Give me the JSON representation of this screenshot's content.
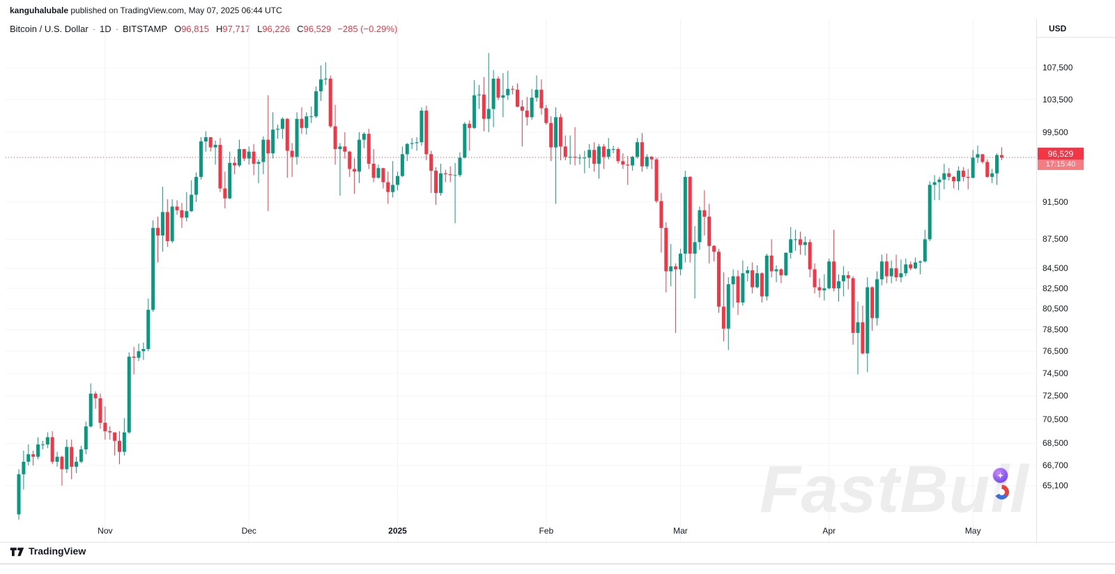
{
  "attribution": {
    "username": "kanguhalubale",
    "rest": " published on TradingView.com, May 07, 2025 06:44 UTC"
  },
  "legend": {
    "symbol": "Bitcoin / U.S. Dollar",
    "separator": "·",
    "interval": "1D",
    "exchange": "BITSTAMP",
    "o_label": "O",
    "o_value": "96,815",
    "h_label": "H",
    "h_value": "97,717",
    "l_label": "L",
    "l_value": "96,226",
    "c_label": "C",
    "c_value": "96,529",
    "change": "−285 (−0.29%)"
  },
  "price_axis": {
    "currency": "USD",
    "last_price": "96,529",
    "countdown": "17:15:40",
    "ticks": [
      "107,500",
      "103,500",
      "99,500",
      "91,500",
      "87,500",
      "84,500",
      "82,500",
      "80,500",
      "78,500",
      "76,500",
      "74,500",
      "72,500",
      "70,500",
      "68,500",
      "66,700",
      "65,100"
    ]
  },
  "watermark": {
    "text": "FastBull"
  },
  "footer": {
    "brand": "TradingView"
  },
  "chart_data": {
    "type": "candlestick",
    "title": "Bitcoin / U.S. Dollar, 1D, BITSTAMP",
    "ylabel": "USD",
    "y_scale": "log",
    "grid": "on",
    "price_top": 113900,
    "price_bottom": 60850,
    "last_price": 96529,
    "up_color": "#089981",
    "down_color": "#f23645",
    "x_ticks": [
      {
        "label": "Nov",
        "candle_index": 18
      },
      {
        "label": "Dec",
        "candle_index": 48
      },
      {
        "label": "2025",
        "candle_index": 79,
        "year": true
      },
      {
        "label": "Feb",
        "candle_index": 110
      },
      {
        "label": "Mar",
        "candle_index": 138
      },
      {
        "label": "Apr",
        "candle_index": 169
      },
      {
        "label": "May",
        "candle_index": 199
      }
    ],
    "y_tick_values": [
      107500,
      103500,
      99500,
      91500,
      87500,
      84500,
      82500,
      80500,
      78500,
      76500,
      74500,
      72500,
      70500,
      68500,
      66700,
      65100
    ],
    "candles_ohlc_thousands": [
      [
        62.9,
        66.4,
        62.5,
        66
      ],
      [
        66,
        67.9,
        64.8,
        67
      ],
      [
        67,
        68.4,
        66.7,
        67.6
      ],
      [
        67.6,
        67.9,
        66.7,
        67.4
      ],
      [
        67.4,
        69,
        67.2,
        68.4
      ],
      [
        68.4,
        68.7,
        68,
        68.4
      ],
      [
        68.4,
        69.4,
        68.1,
        69
      ],
      [
        69,
        69.5,
        66.8,
        67
      ],
      [
        67,
        67.8,
        66.6,
        67.4
      ],
      [
        67.4,
        67.5,
        65.1,
        66.4
      ],
      [
        66.4,
        68.8,
        66.1,
        68.2
      ],
      [
        68.2,
        68.8,
        65.6,
        66.6
      ],
      [
        66.6,
        67.4,
        66.1,
        67
      ],
      [
        67,
        68.3,
        66.9,
        68
      ],
      [
        68,
        70.3,
        67.6,
        69.9
      ],
      [
        69.9,
        73.6,
        69.8,
        72.7
      ],
      [
        72.7,
        72.9,
        71.4,
        72.3
      ],
      [
        72.3,
        72.7,
        69.7,
        70.2
      ],
      [
        70.2,
        71.6,
        68.8,
        69.5
      ],
      [
        69.5,
        69.9,
        68.8,
        69.4
      ],
      [
        69.4,
        69.4,
        67.5,
        68.7
      ],
      [
        68.7,
        69.5,
        66.8,
        67.8
      ],
      [
        67.8,
        70.6,
        67.5,
        69.4
      ],
      [
        69.4,
        76.4,
        69.3,
        76
      ],
      [
        76,
        76.9,
        74.4,
        75.9
      ],
      [
        75.9,
        77.2,
        75.6,
        76.5
      ],
      [
        76.5,
        77.3,
        75.7,
        76.7
      ],
      [
        76.7,
        81.5,
        76.5,
        80.4
      ],
      [
        80.4,
        89.5,
        80.2,
        88.7
      ],
      [
        88.7,
        89.9,
        85.1,
        87.9
      ],
      [
        87.9,
        93.2,
        86.2,
        90.4
      ],
      [
        90.4,
        91.8,
        86.7,
        87.3
      ],
      [
        87.3,
        91.8,
        87.1,
        91
      ],
      [
        91,
        91.7,
        90.1,
        90.6
      ],
      [
        90.6,
        91.4,
        88.7,
        89.8
      ],
      [
        89.8,
        92.6,
        89.4,
        90.5
      ],
      [
        90.5,
        93.9,
        90.4,
        92.3
      ],
      [
        92.3,
        94.8,
        91.5,
        94.3
      ],
      [
        94.3,
        98.9,
        94,
        98.4
      ],
      [
        98.4,
        99.6,
        97.2,
        98.9
      ],
      [
        98.9,
        98.9,
        97.2,
        97.7
      ],
      [
        97.7,
        98.5,
        95.7,
        98
      ],
      [
        98,
        98.8,
        92.6,
        93
      ],
      [
        93,
        94.9,
        90.8,
        91.9
      ],
      [
        91.9,
        97.2,
        91.8,
        95.9
      ],
      [
        95.9,
        96.6,
        94.6,
        95.6
      ],
      [
        95.6,
        98.6,
        95.4,
        97.5
      ],
      [
        97.5,
        97.5,
        96.1,
        96.4
      ],
      [
        96.4,
        97.8,
        95.7,
        97.2
      ],
      [
        97.2,
        98.1,
        94.5,
        95.8
      ],
      [
        95.8,
        96.3,
        93.6,
        96
      ],
      [
        96,
        99,
        94.6,
        98.6
      ],
      [
        98.6,
        104,
        90.5,
        97
      ],
      [
        97,
        101.9,
        96.4,
        99.8
      ],
      [
        99.8,
        100.4,
        98.7,
        99.9
      ],
      [
        99.9,
        101.3,
        98.7,
        101.1
      ],
      [
        101.1,
        101.2,
        94.2,
        97.3
      ],
      [
        97.3,
        98.2,
        94.3,
        96.6
      ],
      [
        96.6,
        101.9,
        95.7,
        101.1
      ],
      [
        101.1,
        102.5,
        99.3,
        100
      ],
      [
        100,
        101.9,
        99.2,
        101.4
      ],
      [
        101.4,
        102.6,
        100.6,
        101.4
      ],
      [
        101.4,
        105.1,
        101.2,
        104.5
      ],
      [
        104.5,
        107.8,
        103.3,
        106
      ],
      [
        106,
        108.2,
        105.3,
        106.1
      ],
      [
        106.1,
        106.5,
        100,
        100.2
      ],
      [
        100.2,
        102.8,
        95.7,
        97.5
      ],
      [
        97.5,
        98.2,
        92.2,
        97.8
      ],
      [
        97.8,
        99.5,
        96.4,
        97.2
      ],
      [
        97.2,
        97.3,
        94.3,
        95.2
      ],
      [
        95.2,
        96.4,
        92.4,
        94.9
      ],
      [
        94.9,
        99.5,
        93.6,
        98.6
      ],
      [
        98.6,
        99.5,
        97.6,
        99.3
      ],
      [
        99.3,
        99.9,
        95.2,
        95.8
      ],
      [
        95.8,
        97.5,
        93.7,
        94.2
      ],
      [
        94.2,
        95.7,
        94.1,
        95.3
      ],
      [
        95.3,
        95.3,
        93,
        93.7
      ],
      [
        93.7,
        94.9,
        91.3,
        92.6
      ],
      [
        92.6,
        96.1,
        92,
        93.4
      ],
      [
        93.4,
        94.9,
        92.8,
        94.4
      ],
      [
        94.4,
        97.8,
        94.3,
        96.9
      ],
      [
        96.9,
        98.2,
        96.1,
        98.1
      ],
      [
        98.1,
        98.8,
        97.5,
        98.2
      ],
      [
        98.2,
        98.9,
        97.3,
        98.3
      ],
      [
        98.3,
        102.5,
        97.9,
        102.1
      ],
      [
        102.1,
        102.7,
        96.2,
        96.9
      ],
      [
        96.9,
        97.3,
        92.5,
        95
      ],
      [
        95,
        95.4,
        91.2,
        92.5
      ],
      [
        92.5,
        95.8,
        92.2,
        94.7
      ],
      [
        94.7,
        95.1,
        93.7,
        94.6
      ],
      [
        94.6,
        95.5,
        93.7,
        94.5
      ],
      [
        94.5,
        95.9,
        89.2,
        94.5
      ],
      [
        94.5,
        97.1,
        94.3,
        96.5
      ],
      [
        96.5,
        100.7,
        96.4,
        100.5
      ],
      [
        100.5,
        100.9,
        97.3,
        100
      ],
      [
        100,
        105.9,
        99.9,
        104
      ],
      [
        104,
        105.3,
        102.3,
        104.1
      ],
      [
        104.1,
        106.3,
        99.6,
        101.1
      ],
      [
        101.1,
        109.4,
        99.5,
        102.3
      ],
      [
        102.3,
        107.2,
        100.1,
        106.1
      ],
      [
        106.1,
        106.4,
        103.4,
        103.7
      ],
      [
        103.7,
        106.8,
        101.3,
        104
      ],
      [
        104,
        107.1,
        103.4,
        104.8
      ],
      [
        104.8,
        105.2,
        104.1,
        104.7
      ],
      [
        104.7,
        105.5,
        102.5,
        102.6
      ],
      [
        102.6,
        103.4,
        97.8,
        102.1
      ],
      [
        102.1,
        103.8,
        100.3,
        101.3
      ],
      [
        101.3,
        104.8,
        101,
        103.7
      ],
      [
        103.7,
        106.5,
        103.2,
        104.7
      ],
      [
        104.7,
        106,
        101.6,
        102.4
      ],
      [
        102.4,
        102.8,
        100.4,
        100.6
      ],
      [
        100.6,
        101.4,
        96.1,
        97.7
      ],
      [
        97.7,
        102.5,
        91.3,
        101.3
      ],
      [
        101.3,
        101.7,
        96.2,
        97.8
      ],
      [
        97.8,
        99.1,
        96.2,
        96.6
      ],
      [
        96.6,
        99.1,
        95.7,
        96.6
      ],
      [
        96.6,
        100.1,
        95.6,
        96.5
      ],
      [
        96.5,
        96.9,
        95.7,
        96.5
      ],
      [
        96.5,
        97.3,
        94.7,
        96.5
      ],
      [
        96.5,
        98.1,
        95.3,
        97.4
      ],
      [
        97.4,
        98.3,
        94.9,
        95.8
      ],
      [
        95.8,
        98.1,
        94.1,
        97.8
      ],
      [
        97.8,
        98.1,
        95.2,
        96.6
      ],
      [
        96.6,
        98.8,
        96.3,
        97.5
      ],
      [
        97.5,
        97.9,
        97,
        97.5
      ],
      [
        97.5,
        97.7,
        95.8,
        96.1
      ],
      [
        96.1,
        97,
        95.2,
        95.7
      ],
      [
        95.7,
        96.7,
        93.4,
        95.6
      ],
      [
        95.6,
        96.7,
        95,
        96.6
      ],
      [
        96.6,
        98.8,
        96.4,
        98.3
      ],
      [
        98.3,
        99.4,
        94.9,
        95.5
      ],
      [
        95.5,
        96.9,
        95.2,
        96.6
      ],
      [
        96.6,
        96.7,
        95.2,
        96.3
      ],
      [
        96.3,
        96.5,
        91.4,
        91.6
      ],
      [
        91.6,
        92.5,
        86.1,
        88.7
      ],
      [
        88.7,
        89.3,
        82.1,
        84.2
      ],
      [
        84.2,
        87,
        82.7,
        84.7
      ],
      [
        84.7,
        85,
        78.2,
        84.4
      ],
      [
        84.4,
        86.5,
        83.8,
        86
      ],
      [
        86,
        95,
        85.1,
        94.3
      ],
      [
        94.3,
        94.4,
        85.1,
        86
      ],
      [
        86,
        88.9,
        81.5,
        87.2
      ],
      [
        87.2,
        91,
        86.4,
        90.6
      ],
      [
        90.6,
        92.8,
        87.9,
        89.9
      ],
      [
        89.9,
        91.3,
        85,
        86.8
      ],
      [
        86.8,
        86.9,
        85.2,
        86.2
      ],
      [
        86.2,
        86.5,
        80.1,
        80.7
      ],
      [
        80.7,
        84.1,
        77.4,
        78.6
      ],
      [
        78.6,
        83.6,
        76.6,
        82.9
      ],
      [
        82.9,
        84.4,
        80.6,
        83.7
      ],
      [
        83.7,
        84.3,
        79.9,
        81.1
      ],
      [
        81.1,
        85.3,
        80.8,
        84
      ],
      [
        84,
        84.7,
        83.2,
        84.3
      ],
      [
        84.3,
        85.1,
        82,
        82.6
      ],
      [
        82.6,
        84.8,
        82.5,
        84
      ],
      [
        84,
        84.1,
        81.1,
        81.7
      ],
      [
        81.7,
        86,
        81.3,
        85.8
      ],
      [
        85.8,
        87.5,
        83.6,
        84.2
      ],
      [
        84.2,
        84.8,
        83.1,
        84.4
      ],
      [
        84.4,
        84.5,
        83,
        83.8
      ],
      [
        83.8,
        86.1,
        83.7,
        86.1
      ],
      [
        86.1,
        88.8,
        85.5,
        87.5
      ],
      [
        87.5,
        88.5,
        86.3,
        87.5
      ],
      [
        87.5,
        88.3,
        85.9,
        86.9
      ],
      [
        86.9,
        87.8,
        85.8,
        87.2
      ],
      [
        87.2,
        87.5,
        83.6,
        84.4
      ],
      [
        84.4,
        85,
        82,
        82.6
      ],
      [
        82.6,
        83.5,
        81.6,
        82.3
      ],
      [
        82.3,
        83.9,
        81.3,
        82.5
      ],
      [
        82.5,
        85.5,
        82.4,
        85.2
      ],
      [
        85.2,
        88.5,
        82.2,
        82.5
      ],
      [
        82.5,
        83.9,
        81.2,
        83.2
      ],
      [
        83.2,
        84.7,
        81.7,
        83.8
      ],
      [
        83.8,
        84.2,
        82.4,
        83.5
      ],
      [
        83.5,
        83.7,
        77.1,
        78.2
      ],
      [
        78.2,
        81.2,
        74.4,
        79.2
      ],
      [
        79.2,
        80.8,
        76.2,
        76.3
      ],
      [
        76.3,
        83.6,
        74.6,
        82.6
      ],
      [
        82.6,
        82.7,
        78.4,
        79.6
      ],
      [
        79.6,
        84.2,
        78.9,
        83.4
      ],
      [
        83.4,
        85.9,
        82.8,
        85.2
      ],
      [
        85.2,
        86,
        83,
        83.7
      ],
      [
        83.7,
        85.3,
        83,
        84.5
      ],
      [
        84.5,
        85.9,
        83.2,
        83.6
      ],
      [
        83.6,
        85.4,
        83.1,
        84
      ],
      [
        84,
        85.5,
        83.7,
        84.9
      ],
      [
        84.9,
        85.2,
        84.3,
        84.5
      ],
      [
        84.5,
        85.6,
        84.4,
        85.1
      ],
      [
        85.1,
        85.3,
        83.9,
        85.2
      ],
      [
        85.2,
        88.5,
        85.1,
        87.5
      ],
      [
        87.5,
        93.8,
        87.3,
        93.4
      ],
      [
        93.4,
        94.5,
        91.7,
        93.7
      ],
      [
        93.7,
        94.3,
        91.7,
        94
      ],
      [
        94,
        95.8,
        92.9,
        94.7
      ],
      [
        94.7,
        95.3,
        93.9,
        94.3
      ],
      [
        94.3,
        94.4,
        93,
        93.8
      ],
      [
        93.8,
        95.5,
        92.8,
        95
      ],
      [
        95,
        95.4,
        93.8,
        94.3
      ],
      [
        94.3,
        95.2,
        92.9,
        94.2
      ],
      [
        94.2,
        97.4,
        94.1,
        96.5
      ],
      [
        96.5,
        97.9,
        95.9,
        96.9
      ],
      [
        96.9,
        96.9,
        95.8,
        96
      ],
      [
        96,
        96.3,
        94.2,
        94.3
      ],
      [
        94.3,
        95.2,
        93.6,
        94.7
      ],
      [
        94.7,
        97,
        93.4,
        96.8
      ],
      [
        96.8,
        97.7,
        96.2,
        96.5
      ]
    ]
  }
}
